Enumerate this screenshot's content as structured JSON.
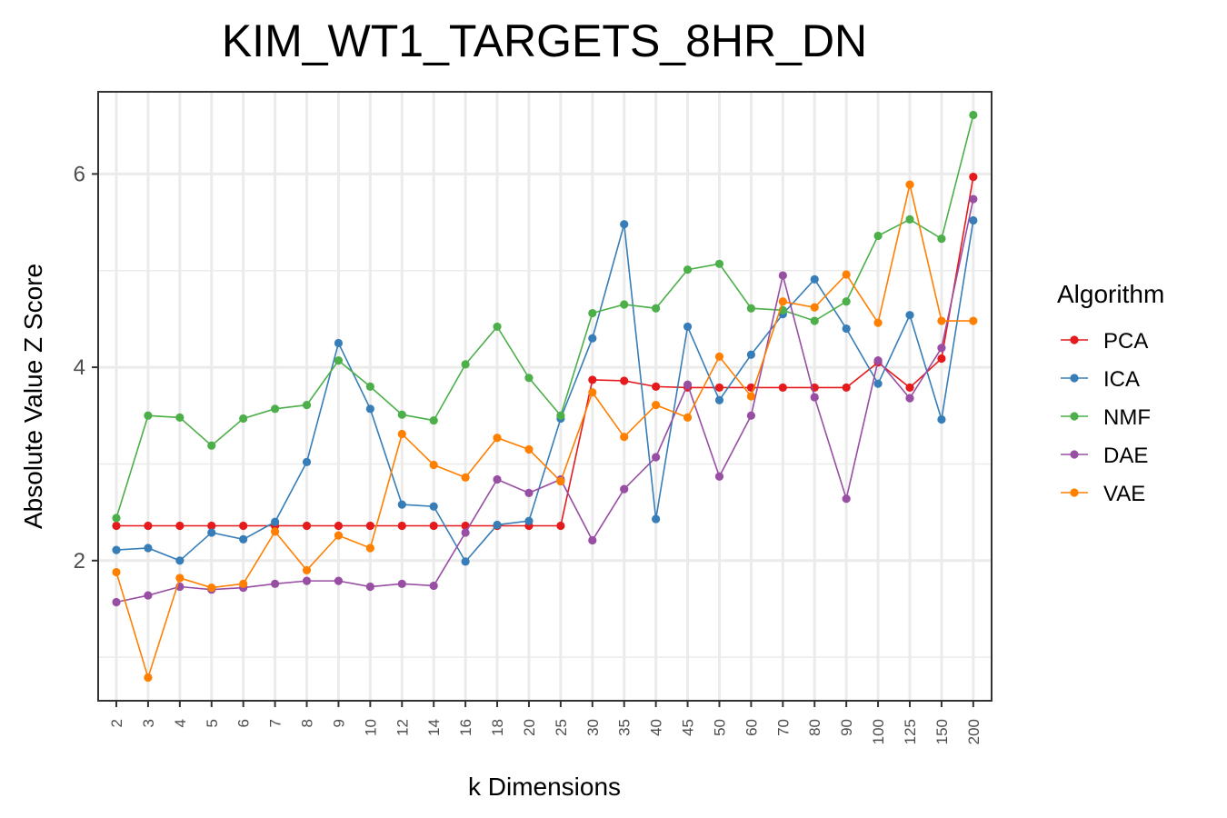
{
  "chart_data": {
    "type": "line",
    "title": "KIM_WT1_TARGETS_8HR_DN",
    "xlabel": "k Dimensions",
    "ylabel": "Absolute Value Z Score",
    "x_scale": "categorical",
    "ylim": [
      0.55,
      6.85
    ],
    "yticks": [
      2,
      4,
      6
    ],
    "grid": true,
    "legend_title": "Algorithm",
    "legend_position": "right",
    "categories": [
      "2",
      "3",
      "4",
      "5",
      "6",
      "7",
      "8",
      "9",
      "10",
      "12",
      "14",
      "16",
      "18",
      "20",
      "25",
      "30",
      "35",
      "40",
      "45",
      "50",
      "60",
      "70",
      "80",
      "90",
      "100",
      "125",
      "150",
      "200"
    ],
    "series": [
      {
        "name": "PCA",
        "color": "#e41a1c",
        "values": [
          2.36,
          2.36,
          2.36,
          2.36,
          2.36,
          2.36,
          2.36,
          2.36,
          2.36,
          2.36,
          2.36,
          2.36,
          2.36,
          2.36,
          2.36,
          3.87,
          3.86,
          3.8,
          3.79,
          3.79,
          3.79,
          3.79,
          3.79,
          3.79,
          4.05,
          3.79,
          4.09,
          5.97
        ]
      },
      {
        "name": "ICA",
        "color": "#377eb8",
        "values": [
          2.11,
          2.13,
          2.0,
          2.29,
          2.22,
          2.4,
          3.02,
          4.25,
          3.57,
          2.58,
          2.56,
          1.99,
          2.37,
          2.41,
          3.47,
          4.3,
          5.48,
          2.43,
          4.42,
          3.66,
          4.13,
          4.55,
          4.91,
          4.4,
          3.83,
          4.54,
          3.46,
          5.52
        ]
      },
      {
        "name": "NMF",
        "color": "#4daf4a",
        "values": [
          2.44,
          3.5,
          3.48,
          3.19,
          3.47,
          3.57,
          3.61,
          4.07,
          3.8,
          3.51,
          3.45,
          4.03,
          4.42,
          3.89,
          3.5,
          4.56,
          4.65,
          4.61,
          5.01,
          5.07,
          4.61,
          4.59,
          4.48,
          4.68,
          5.36,
          5.53,
          5.33,
          6.61
        ]
      },
      {
        "name": "DAE",
        "color": "#984ea3",
        "values": [
          1.57,
          1.64,
          1.73,
          1.7,
          1.72,
          1.76,
          1.79,
          1.79,
          1.73,
          1.76,
          1.74,
          2.29,
          2.84,
          2.7,
          2.84,
          2.21,
          2.74,
          3.07,
          3.82,
          2.87,
          3.5,
          4.95,
          3.69,
          2.64,
          4.07,
          3.68,
          4.2,
          5.74
        ]
      },
      {
        "name": "VAE",
        "color": "#ff7f00",
        "values": [
          1.88,
          0.79,
          1.82,
          1.72,
          1.76,
          2.3,
          1.9,
          2.26,
          2.13,
          3.31,
          2.99,
          2.86,
          3.27,
          3.15,
          2.82,
          3.74,
          3.28,
          3.61,
          3.48,
          4.11,
          3.7,
          4.68,
          4.62,
          4.96,
          4.46,
          5.89,
          4.48,
          4.48
        ]
      }
    ]
  }
}
